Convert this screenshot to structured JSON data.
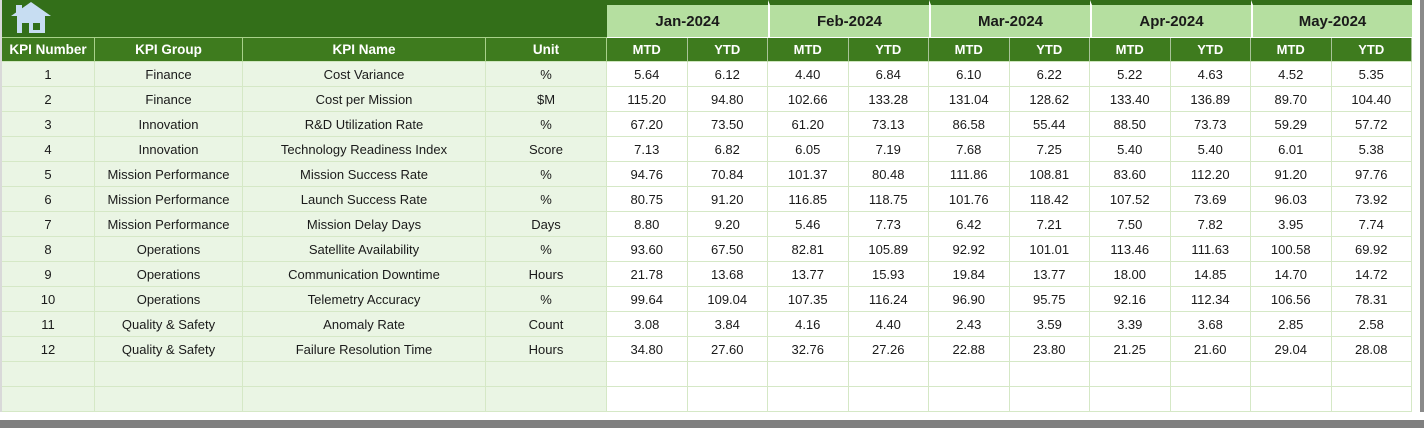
{
  "icons": {
    "home": "house"
  },
  "colors": {
    "banner_green": "#336f19",
    "header_green": "#3e7b1e",
    "month_green": "#b5dfa0",
    "row_green": "#eaf5e4",
    "grid_line": "#d5e8c6",
    "icon_blue": "#c7ddf2",
    "edge_gray": "#7f7f7f"
  },
  "table": {
    "column_headers": [
      "KPI Number",
      "KPI Group",
      "KPI Name",
      "Unit"
    ],
    "month_headers": [
      "Jan-2024",
      "Feb-2024",
      "Mar-2024",
      "Apr-2024",
      "May-2024"
    ],
    "period_subheaders": [
      "MTD",
      "YTD"
    ],
    "empty_row_count": 2,
    "rows": [
      {
        "number": "1",
        "group": "Finance",
        "name": "Cost Variance",
        "unit": "%",
        "values": [
          "5.64",
          "6.12",
          "4.40",
          "6.84",
          "6.10",
          "6.22",
          "5.22",
          "4.63",
          "4.52",
          "5.35"
        ]
      },
      {
        "number": "2",
        "group": "Finance",
        "name": "Cost per Mission",
        "unit": "$M",
        "values": [
          "115.20",
          "94.80",
          "102.66",
          "133.28",
          "131.04",
          "128.62",
          "133.40",
          "136.89",
          "89.70",
          "104.40"
        ]
      },
      {
        "number": "3",
        "group": "Innovation",
        "name": "R&D Utilization Rate",
        "unit": "%",
        "values": [
          "67.20",
          "73.50",
          "61.20",
          "73.13",
          "86.58",
          "55.44",
          "88.50",
          "73.73",
          "59.29",
          "57.72"
        ]
      },
      {
        "number": "4",
        "group": "Innovation",
        "name": "Technology Readiness Index",
        "unit": "Score",
        "values": [
          "7.13",
          "6.82",
          "6.05",
          "7.19",
          "7.68",
          "7.25",
          "5.40",
          "5.40",
          "6.01",
          "5.38"
        ]
      },
      {
        "number": "5",
        "group": "Mission Performance",
        "name": "Mission Success Rate",
        "unit": "%",
        "values": [
          "94.76",
          "70.84",
          "101.37",
          "80.48",
          "111.86",
          "108.81",
          "83.60",
          "112.20",
          "91.20",
          "97.76"
        ]
      },
      {
        "number": "6",
        "group": "Mission Performance",
        "name": "Launch Success Rate",
        "unit": "%",
        "values": [
          "80.75",
          "91.20",
          "116.85",
          "118.75",
          "101.76",
          "118.42",
          "107.52",
          "73.69",
          "96.03",
          "73.92"
        ]
      },
      {
        "number": "7",
        "group": "Mission Performance",
        "name": "Mission Delay Days",
        "unit": "Days",
        "values": [
          "8.80",
          "9.20",
          "5.46",
          "7.73",
          "6.42",
          "7.21",
          "7.50",
          "7.82",
          "3.95",
          "7.74"
        ]
      },
      {
        "number": "8",
        "group": "Operations",
        "name": "Satellite Availability",
        "unit": "%",
        "values": [
          "93.60",
          "67.50",
          "82.81",
          "105.89",
          "92.92",
          "101.01",
          "113.46",
          "111.63",
          "100.58",
          "69.92"
        ]
      },
      {
        "number": "9",
        "group": "Operations",
        "name": "Communication Downtime",
        "unit": "Hours",
        "values": [
          "21.78",
          "13.68",
          "13.77",
          "15.93",
          "19.84",
          "13.77",
          "18.00",
          "14.85",
          "14.70",
          "14.72"
        ]
      },
      {
        "number": "10",
        "group": "Operations",
        "name": "Telemetry Accuracy",
        "unit": "%",
        "values": [
          "99.64",
          "109.04",
          "107.35",
          "116.24",
          "96.90",
          "95.75",
          "92.16",
          "112.34",
          "106.56",
          "78.31"
        ]
      },
      {
        "number": "11",
        "group": "Quality & Safety",
        "name": "Anomaly Rate",
        "unit": "Count",
        "values": [
          "3.08",
          "3.84",
          "4.16",
          "4.40",
          "2.43",
          "3.59",
          "3.39",
          "3.68",
          "2.85",
          "2.58"
        ]
      },
      {
        "number": "12",
        "group": "Quality & Safety",
        "name": "Failure Resolution Time",
        "unit": "Hours",
        "values": [
          "34.80",
          "27.60",
          "32.76",
          "27.26",
          "22.88",
          "23.80",
          "21.25",
          "21.60",
          "29.04",
          "28.08"
        ]
      }
    ]
  }
}
